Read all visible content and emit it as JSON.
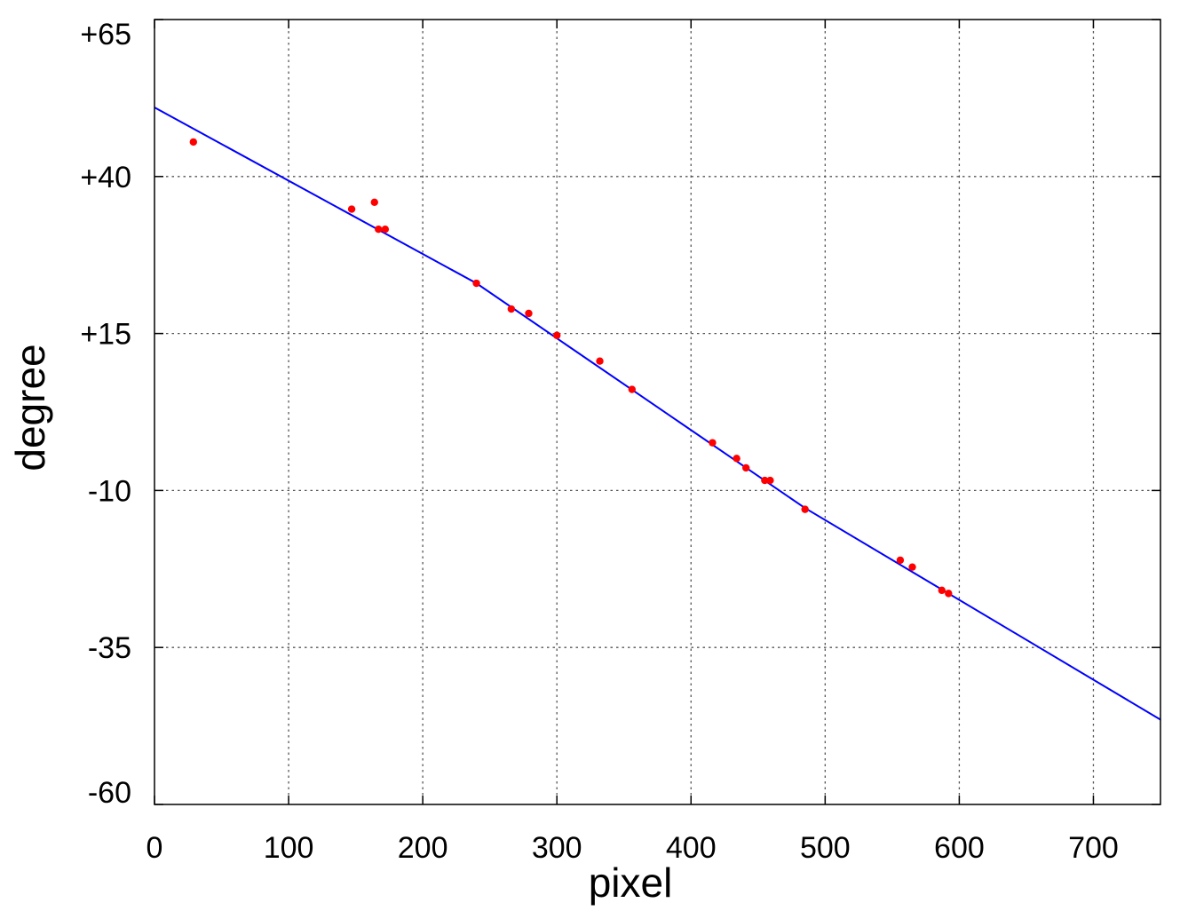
{
  "chart_data": {
    "type": "scatter",
    "title": "",
    "xlabel": "pixel",
    "ylabel": "degree",
    "xlim": [
      0,
      750
    ],
    "ylim": [
      -60,
      65
    ],
    "grid": true,
    "x_ticks": [
      {
        "value": 0,
        "label": "0"
      },
      {
        "value": 100,
        "label": "100"
      },
      {
        "value": 200,
        "label": "200"
      },
      {
        "value": 300,
        "label": "300"
      },
      {
        "value": 400,
        "label": "400"
      },
      {
        "value": 500,
        "label": "500"
      },
      {
        "value": 600,
        "label": "600"
      },
      {
        "value": 700,
        "label": "700"
      }
    ],
    "y_ticks": [
      {
        "value": 65,
        "label": "+65"
      },
      {
        "value": 40,
        "label": "+40"
      },
      {
        "value": 15,
        "label": "+15"
      },
      {
        "value": -10,
        "label": "-10"
      },
      {
        "value": -35,
        "label": "-35"
      },
      {
        "value": -60,
        "label": "-60"
      }
    ],
    "series": [
      {
        "kind": "scatter",
        "color": "#ff0000",
        "points": [
          [
            29,
            45.5
          ],
          [
            147,
            34.8
          ],
          [
            164,
            35.9
          ],
          [
            167,
            31.6
          ],
          [
            172,
            31.6
          ],
          [
            240,
            23.0
          ],
          [
            266,
            18.9
          ],
          [
            279,
            18.2
          ],
          [
            300,
            14.7
          ],
          [
            332,
            10.6
          ],
          [
            356,
            6.1
          ],
          [
            416,
            -2.4
          ],
          [
            434,
            -4.9
          ],
          [
            441,
            -6.4
          ],
          [
            455,
            -8.4
          ],
          [
            459,
            -8.4
          ],
          [
            485,
            -13.0
          ],
          [
            556,
            -21.1
          ],
          [
            565,
            -22.2
          ],
          [
            587,
            -25.9
          ],
          [
            592,
            -26.4
          ]
        ]
      },
      {
        "kind": "line",
        "color": "#0000ff",
        "points": [
          [
            0,
            51.0
          ],
          [
            240,
            23.0
          ],
          [
            485,
            -12.8
          ],
          [
            750,
            -46.5
          ]
        ]
      }
    ]
  }
}
